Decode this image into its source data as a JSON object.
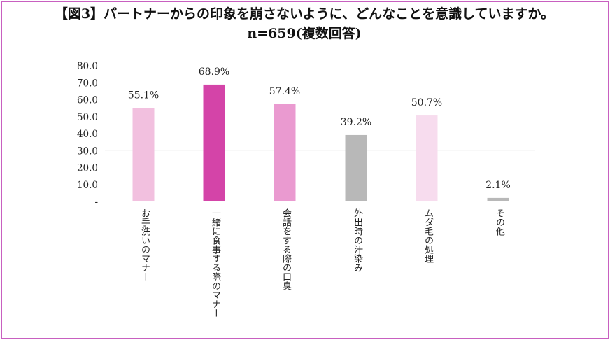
{
  "header": {
    "title": "【図3】パートナーからの印象を崩さないように、どんなことを意識していますか。",
    "subtitle": "n=659(複数回答)"
  },
  "chart_data": {
    "type": "bar",
    "title": "【図3】パートナーからの印象を崩さないように、どんなことを意識していますか。",
    "subtitle": "n=659(複数回答)",
    "categories": [
      "お手洗いのマナー",
      "一緒に食事する際のマナー",
      "会話をする際の口臭",
      "外出時の汗染み",
      "ムダ毛の処理",
      "その他"
    ],
    "values": [
      55.1,
      68.9,
      57.4,
      39.2,
      50.7,
      2.1
    ],
    "data_labels": [
      "55.1%",
      "68.9%",
      "57.4%",
      "39.2%",
      "50.7%",
      "2.1%"
    ],
    "colors": [
      "#f2c0df",
      "#d444a8",
      "#ea9ad0",
      "#b8b8b8",
      "#f7dcee",
      "#b8b8b8"
    ],
    "y_ticks": [
      "-",
      "10.0",
      "20.0",
      "30.0",
      "40.0",
      "50.0",
      "60.0",
      "70.0",
      "80.0"
    ],
    "ylim": [
      0,
      80
    ],
    "xlabel": "",
    "ylabel": "",
    "grid": false
  }
}
